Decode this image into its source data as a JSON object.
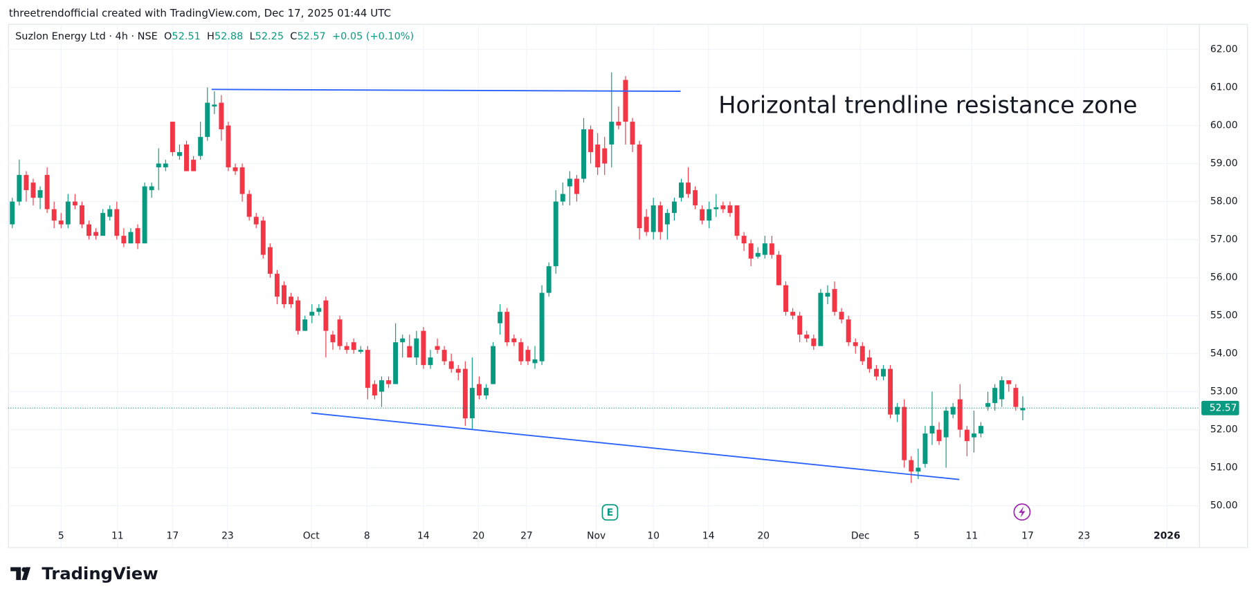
{
  "header": "threetrendofficial created with TradingView.com, Dec 17, 2025 01:44 UTC",
  "logo": "TradingView",
  "chart_data": {
    "type": "candlestick",
    "legend": {
      "symbol": "Suzlon Energy Ltd · 4h · NSE",
      "labels": [
        "O",
        "H",
        "L",
        "C"
      ],
      "open": 52.51,
      "high": 52.88,
      "low": 52.25,
      "close": 52.57,
      "change": "+0.05 (+0.10%)"
    },
    "annotation": "Horizontal trendline resistance zone",
    "up_color": "#089981",
    "down_color": "#f23645",
    "grid": true,
    "last_price": 52.57,
    "xlim": [
      -0.6,
      170.3
    ],
    "ylim": [
      48.91,
      62.67
    ],
    "yticks": [
      {
        "value": 62,
        "label": "62.00"
      },
      {
        "value": 61,
        "label": "61.00"
      },
      {
        "value": 60,
        "label": "60.00"
      },
      {
        "value": 59,
        "label": "59.00"
      },
      {
        "value": 58,
        "label": "58.00"
      },
      {
        "value": 57,
        "label": "57.00"
      },
      {
        "value": 56,
        "label": "56.00"
      },
      {
        "value": 55,
        "label": "55.00"
      },
      {
        "value": 54,
        "label": "54.00"
      },
      {
        "value": 53,
        "label": "53.00"
      },
      {
        "value": 52,
        "label": "52.00"
      },
      {
        "value": 51,
        "label": "51.00"
      },
      {
        "value": 50,
        "label": "50.00"
      }
    ],
    "xticks": [
      {
        "value": 7.0,
        "label": "5"
      },
      {
        "value": 15.1,
        "label": "11"
      },
      {
        "value": 23.0,
        "label": "17"
      },
      {
        "value": 30.9,
        "label": "23"
      },
      {
        "value": 42.9,
        "label": "Oct"
      },
      {
        "value": 50.9,
        "label": "8"
      },
      {
        "value": 59.0,
        "label": "14"
      },
      {
        "value": 66.9,
        "label": "20"
      },
      {
        "value": 73.8,
        "label": "27"
      },
      {
        "value": 83.8,
        "label": "Nov"
      },
      {
        "value": 92.0,
        "label": "10"
      },
      {
        "value": 99.9,
        "label": "14"
      },
      {
        "value": 107.8,
        "label": "20"
      },
      {
        "value": 121.7,
        "label": "Dec"
      },
      {
        "value": 129.8,
        "label": "5"
      },
      {
        "value": 137.7,
        "label": "11"
      },
      {
        "value": 145.7,
        "label": "17"
      },
      {
        "value": 153.8,
        "label": "23"
      },
      {
        "value": 165.7,
        "label": "2026"
      }
    ],
    "trendlines": [
      {
        "x": [
          28.6,
          95.9
        ],
        "y": [
          60.95,
          60.9
        ],
        "color": "#2962ff"
      },
      {
        "x": [
          42.9,
          135.9
        ],
        "y": [
          52.44,
          50.69
        ],
        "color": "#2962ff"
      }
    ],
    "candles": [
      [
        57.4,
        58.1,
        57.3,
        58.0
      ],
      [
        58.0,
        59.1,
        57.9,
        58.7
      ],
      [
        58.7,
        58.8,
        58.0,
        58.3
      ],
      [
        58.5,
        58.6,
        57.9,
        58.1
      ],
      [
        58.1,
        58.4,
        57.8,
        58.3
      ],
      [
        58.7,
        58.9,
        57.7,
        57.8
      ],
      [
        57.8,
        58.0,
        57.3,
        57.5
      ],
      [
        57.5,
        57.7,
        57.3,
        57.4
      ],
      [
        57.4,
        58.2,
        57.3,
        58.0
      ],
      [
        58.0,
        58.2,
        57.8,
        57.9
      ],
      [
        57.9,
        58.0,
        57.3,
        57.4
      ],
      [
        57.4,
        57.5,
        57.0,
        57.1
      ],
      [
        57.2,
        57.3,
        57.0,
        57.1
      ],
      [
        57.1,
        57.8,
        57.1,
        57.7
      ],
      [
        57.6,
        57.9,
        57.5,
        57.8
      ],
      [
        57.8,
        58.0,
        57.0,
        57.1
      ],
      [
        57.1,
        57.3,
        56.8,
        56.9
      ],
      [
        56.9,
        57.3,
        56.9,
        57.2
      ],
      [
        57.3,
        57.4,
        56.75,
        56.9
      ],
      [
        56.9,
        58.5,
        56.9,
        58.4
      ],
      [
        58.3,
        58.5,
        58.1,
        58.4
      ],
      [
        58.9,
        59.4,
        58.3,
        59.0
      ],
      [
        58.9,
        59.1,
        58.8,
        59.0
      ],
      [
        60.1,
        60.1,
        59.2,
        59.3
      ],
      [
        59.2,
        59.5,
        59.1,
        59.3
      ],
      [
        59.5,
        59.6,
        58.8,
        58.8
      ],
      [
        59.1,
        59.2,
        58.8,
        58.8
      ],
      [
        59.2,
        60.1,
        59.1,
        59.7
      ],
      [
        59.7,
        61.0,
        59.6,
        60.6
      ],
      [
        60.5,
        60.9,
        60.3,
        60.55
      ],
      [
        60.6,
        60.8,
        59.6,
        59.9
      ],
      [
        60.0,
        60.1,
        58.8,
        58.9
      ],
      [
        58.9,
        59.0,
        58.7,
        58.8
      ],
      [
        58.9,
        59.0,
        58.0,
        58.2
      ],
      [
        58.2,
        58.3,
        57.5,
        57.6
      ],
      [
        57.6,
        57.7,
        57.3,
        57.4
      ],
      [
        57.5,
        57.6,
        56.5,
        56.6
      ],
      [
        56.8,
        56.9,
        56.0,
        56.1
      ],
      [
        56.1,
        56.2,
        55.3,
        55.5
      ],
      [
        55.8,
        55.9,
        55.2,
        55.3
      ],
      [
        55.5,
        55.6,
        55.2,
        55.3
      ],
      [
        55.4,
        55.5,
        54.5,
        54.6
      ],
      [
        54.6,
        55.0,
        54.6,
        54.9
      ],
      [
        55.0,
        55.3,
        54.8,
        55.1
      ],
      [
        55.1,
        55.3,
        55.0,
        55.2
      ],
      [
        55.4,
        55.5,
        53.9,
        54.6
      ],
      [
        54.5,
        54.6,
        54.1,
        54.3
      ],
      [
        54.9,
        55.0,
        54.1,
        54.2
      ],
      [
        54.2,
        54.3,
        54.0,
        54.1
      ],
      [
        54.3,
        54.4,
        54.0,
        54.1
      ],
      [
        54.05,
        54.2,
        54.0,
        54.1
      ],
      [
        54.1,
        54.2,
        52.8,
        53.1
      ],
      [
        53.2,
        53.3,
        52.8,
        52.9
      ],
      [
        53.0,
        53.4,
        52.6,
        53.3
      ],
      [
        53.3,
        53.4,
        53.1,
        53.2
      ],
      [
        53.2,
        54.8,
        53.2,
        54.3
      ],
      [
        54.3,
        54.5,
        53.9,
        54.4
      ],
      [
        54.2,
        54.5,
        53.9,
        53.9
      ],
      [
        53.9,
        54.6,
        53.7,
        54.4
      ],
      [
        54.6,
        54.7,
        53.6,
        53.7
      ],
      [
        53.7,
        54.1,
        53.6,
        53.9
      ],
      [
        54.2,
        54.4,
        54.0,
        54.1
      ],
      [
        54.1,
        54.2,
        53.7,
        53.8
      ],
      [
        53.8,
        54.0,
        53.5,
        53.6
      ],
      [
        53.6,
        53.7,
        53.3,
        53.5
      ],
      [
        53.6,
        53.8,
        52.1,
        52.3
      ],
      [
        52.3,
        53.9,
        52.0,
        53.1
      ],
      [
        53.2,
        53.4,
        52.8,
        52.9
      ],
      [
        52.9,
        53.2,
        52.8,
        53.1
      ],
      [
        53.2,
        54.3,
        53.2,
        54.2
      ],
      [
        54.8,
        55.3,
        54.5,
        55.1
      ],
      [
        55.1,
        55.2,
        54.2,
        54.3
      ],
      [
        54.4,
        54.5,
        54.2,
        54.3
      ],
      [
        54.3,
        54.4,
        53.7,
        53.8
      ],
      [
        54.1,
        54.2,
        53.7,
        53.8
      ],
      [
        53.75,
        54.2,
        53.6,
        53.85
      ],
      [
        53.8,
        55.8,
        53.7,
        55.6
      ],
      [
        55.6,
        56.4,
        55.5,
        56.3
      ],
      [
        56.3,
        58.3,
        56.1,
        58.0
      ],
      [
        58.0,
        58.5,
        57.9,
        58.2
      ],
      [
        58.4,
        58.8,
        57.9,
        58.6
      ],
      [
        58.6,
        58.7,
        58.0,
        58.2
      ],
      [
        58.6,
        60.2,
        58.5,
        59.9
      ],
      [
        59.9,
        60.0,
        59.0,
        59.3
      ],
      [
        59.5,
        59.8,
        58.7,
        58.9
      ],
      [
        59.4,
        59.7,
        58.7,
        59.0
      ],
      [
        59.5,
        61.4,
        58.9,
        60.1
      ],
      [
        60.1,
        60.5,
        59.9,
        60.0
      ],
      [
        61.2,
        61.3,
        59.5,
        60.1
      ],
      [
        60.1,
        60.2,
        59.3,
        59.5
      ],
      [
        59.5,
        59.6,
        57.0,
        57.3
      ],
      [
        57.6,
        57.8,
        57.1,
        57.2
      ],
      [
        57.2,
        58.1,
        57.0,
        57.9
      ],
      [
        57.9,
        58.0,
        57.0,
        57.2
      ],
      [
        57.4,
        57.8,
        57.0,
        57.7
      ],
      [
        57.7,
        58.1,
        57.5,
        58.0
      ],
      [
        58.1,
        58.6,
        58.0,
        58.5
      ],
      [
        58.5,
        58.9,
        58.1,
        58.2
      ],
      [
        58.3,
        58.4,
        57.8,
        57.9
      ],
      [
        57.8,
        57.9,
        57.4,
        57.5
      ],
      [
        57.5,
        58.0,
        57.3,
        57.8
      ],
      [
        57.8,
        58.2,
        57.6,
        57.85
      ],
      [
        57.9,
        58.0,
        57.7,
        57.8
      ],
      [
        57.9,
        58.0,
        57.6,
        57.7
      ],
      [
        57.9,
        57.9,
        57.0,
        57.1
      ],
      [
        57.1,
        57.2,
        56.7,
        56.9
      ],
      [
        56.9,
        57.0,
        56.3,
        56.5
      ],
      [
        56.55,
        56.8,
        56.5,
        56.65
      ],
      [
        56.6,
        57.1,
        56.5,
        56.9
      ],
      [
        56.9,
        57.1,
        56.5,
        56.6
      ],
      [
        56.6,
        56.7,
        55.8,
        55.8
      ],
      [
        55.8,
        55.9,
        55.0,
        55.1
      ],
      [
        55.1,
        55.2,
        54.9,
        55.0
      ],
      [
        55.0,
        55.1,
        54.3,
        54.5
      ],
      [
        54.5,
        54.6,
        54.3,
        54.4
      ],
      [
        54.4,
        54.5,
        54.1,
        54.2
      ],
      [
        54.2,
        55.7,
        54.2,
        55.6
      ],
      [
        55.5,
        55.8,
        55.3,
        55.6
      ],
      [
        55.7,
        55.9,
        55.0,
        55.1
      ],
      [
        55.1,
        55.2,
        54.8,
        54.9
      ],
      [
        54.9,
        55.0,
        54.2,
        54.3
      ],
      [
        54.3,
        54.4,
        54.0,
        54.2
      ],
      [
        54.2,
        54.3,
        53.7,
        53.8
      ],
      [
        53.9,
        54.1,
        53.5,
        53.6
      ],
      [
        53.6,
        53.7,
        53.3,
        53.4
      ],
      [
        53.4,
        53.7,
        53.3,
        53.6
      ],
      [
        53.6,
        53.7,
        52.3,
        52.4
      ],
      [
        52.4,
        52.7,
        52.2,
        52.6
      ],
      [
        52.6,
        52.8,
        51.0,
        51.2
      ],
      [
        51.2,
        51.3,
        50.6,
        50.9
      ],
      [
        50.9,
        51.5,
        50.7,
        51.0
      ],
      [
        51.1,
        52.1,
        51.0,
        51.9
      ],
      [
        51.9,
        53.0,
        51.6,
        52.1
      ],
      [
        52.0,
        52.2,
        51.6,
        51.7
      ],
      [
        51.8,
        52.6,
        51.0,
        52.5
      ],
      [
        52.4,
        52.7,
        52.3,
        52.6
      ],
      [
        52.8,
        53.2,
        51.8,
        52.0
      ],
      [
        52.0,
        52.1,
        51.3,
        51.7
      ],
      [
        51.8,
        52.5,
        51.4,
        51.9
      ],
      [
        51.9,
        52.2,
        51.8,
        52.1
      ],
      [
        52.6,
        53.0,
        52.5,
        52.7
      ],
      [
        52.7,
        53.2,
        52.5,
        53.1
      ],
      [
        52.8,
        53.4,
        52.6,
        53.3
      ],
      [
        53.3,
        53.3,
        53.0,
        53.2
      ],
      [
        53.1,
        53.2,
        52.5,
        52.6
      ],
      [
        52.51,
        52.88,
        52.25,
        52.57
      ]
    ]
  }
}
